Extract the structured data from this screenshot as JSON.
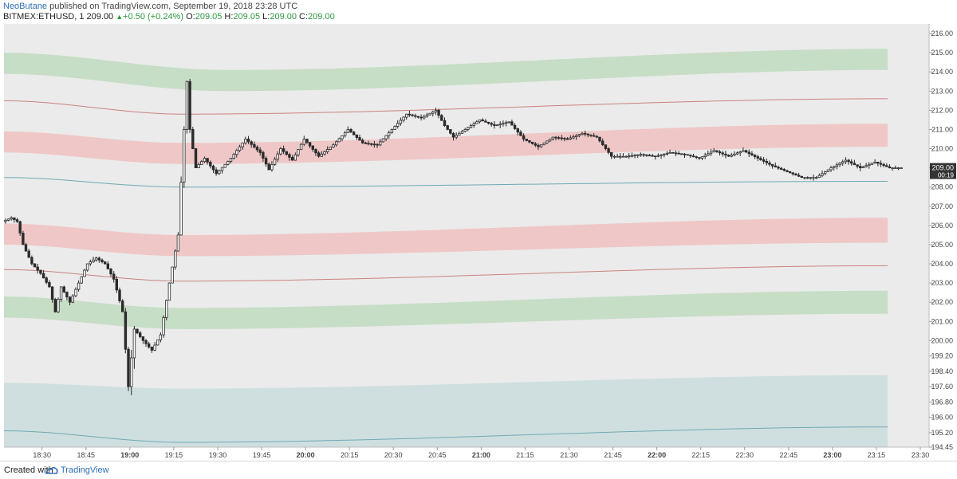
{
  "header": {
    "author": "NeoButane",
    "published_text": "published on TradingView.com, September 19, 2018 23:28 UTC",
    "symbol": "BITMEX:ETHUSD, 1",
    "last": "209.00",
    "change": "+0.50 (+0.24%)",
    "o_label": "O:",
    "o_value": "209.05",
    "h_label": "H:",
    "h_value": "209.05",
    "l_label": "L:",
    "l_value": "209.00",
    "c_label": "C:",
    "c_value": "209.00"
  },
  "footer": {
    "created_with": "Created with",
    "brand": "TradingView"
  },
  "colors": {
    "plot_bg": "#ebebeb",
    "green_band": "#c6ddc6",
    "red_band": "#efc7c7",
    "teal_band": "#cfdfdf",
    "red_line": "#c9837e",
    "teal_line": "#6fa9b4",
    "candle": "#2b2b2b",
    "price_label_bg": "#333333"
  },
  "chart_data": {
    "type": "candlestick",
    "symbol": "BITMEX:ETHUSD",
    "interval": "1",
    "x_range": [
      "18:17",
      "23:33"
    ],
    "y_range": [
      194.45,
      216.5
    ],
    "x_ticks": [
      "18:30",
      "18:45",
      "19:00",
      "19:15",
      "19:30",
      "19:45",
      "20:00",
      "20:15",
      "20:30",
      "20:45",
      "21:00",
      "21:15",
      "21:30",
      "21:45",
      "22:00",
      "22:15",
      "22:30",
      "22:45",
      "23:00",
      "23:15",
      "23:30"
    ],
    "bold_ticks": [
      "19:00",
      "20:00",
      "21:00",
      "22:00",
      "23:00"
    ],
    "y_ticks": [
      "216.00",
      "215.00",
      "214.00",
      "213.00",
      "212.00",
      "211.00",
      "210.00",
      "209.00",
      "208.00",
      "207.00",
      "206.00",
      "205.00",
      "204.00",
      "203.00",
      "202.00",
      "201.00",
      "200.00",
      "199.20",
      "198.40",
      "197.60",
      "196.80",
      "196.00",
      "195.20",
      "194.45"
    ],
    "price_label": "209.00",
    "countdown_label": "00:19",
    "price_path": [
      [
        "18:17",
        206.2
      ],
      [
        "18:20",
        206.4
      ],
      [
        "18:22",
        206.2
      ],
      [
        "18:24",
        205.0
      ],
      [
        "18:27",
        204.0
      ],
      [
        "18:30",
        203.5
      ],
      [
        "18:33",
        202.8
      ],
      [
        "18:35",
        201.5
      ],
      [
        "18:37",
        202.8
      ],
      [
        "18:40",
        202.0
      ],
      [
        "18:43",
        203.0
      ],
      [
        "18:46",
        204.0
      ],
      [
        "18:49",
        204.3
      ],
      [
        "18:52",
        204.0
      ],
      [
        "18:55",
        203.2
      ],
      [
        "18:58",
        201.5
      ],
      [
        "19:00",
        197.6
      ],
      [
        "19:02",
        200.6
      ],
      [
        "19:05",
        200.0
      ],
      [
        "19:08",
        199.5
      ],
      [
        "19:11",
        200.3
      ],
      [
        "19:14",
        203.0
      ],
      [
        "19:17",
        205.5
      ],
      [
        "19:19",
        211.0
      ],
      [
        "19:20",
        213.5
      ],
      [
        "19:21",
        211.0
      ],
      [
        "19:23",
        209.0
      ],
      [
        "19:26",
        209.5
      ],
      [
        "19:30",
        208.7
      ],
      [
        "19:35",
        209.5
      ],
      [
        "19:40",
        210.5
      ],
      [
        "19:45",
        209.8
      ],
      [
        "19:48",
        208.9
      ],
      [
        "19:52",
        210.0
      ],
      [
        "19:56",
        209.4
      ],
      [
        "20:00",
        210.5
      ],
      [
        "20:05",
        209.6
      ],
      [
        "20:10",
        210.2
      ],
      [
        "20:15",
        211.0
      ],
      [
        "20:20",
        210.3
      ],
      [
        "20:25",
        210.2
      ],
      [
        "20:30",
        211.0
      ],
      [
        "20:35",
        211.8
      ],
      [
        "20:40",
        211.6
      ],
      [
        "20:45",
        212.0
      ],
      [
        "20:48",
        211.2
      ],
      [
        "20:51",
        210.6
      ],
      [
        "20:55",
        211.0
      ],
      [
        "21:00",
        211.5
      ],
      [
        "21:05",
        211.2
      ],
      [
        "21:10",
        211.4
      ],
      [
        "21:15",
        210.5
      ],
      [
        "21:20",
        210.1
      ],
      [
        "21:25",
        210.6
      ],
      [
        "21:30",
        210.5
      ],
      [
        "21:35",
        210.8
      ],
      [
        "21:40",
        210.6
      ],
      [
        "21:45",
        209.6
      ],
      [
        "21:50",
        209.6
      ],
      [
        "21:55",
        209.7
      ],
      [
        "22:00",
        209.6
      ],
      [
        "22:05",
        209.8
      ],
      [
        "22:10",
        209.7
      ],
      [
        "22:15",
        209.5
      ],
      [
        "22:20",
        209.9
      ],
      [
        "22:25",
        209.6
      ],
      [
        "22:30",
        209.9
      ],
      [
        "22:35",
        209.5
      ],
      [
        "22:40",
        209.1
      ],
      [
        "22:45",
        208.8
      ],
      [
        "22:50",
        208.5
      ],
      [
        "22:55",
        208.5
      ],
      [
        "23:00",
        209.0
      ],
      [
        "23:05",
        209.4
      ],
      [
        "23:10",
        209.0
      ],
      [
        "23:15",
        209.3
      ],
      [
        "23:20",
        209.0
      ],
      [
        "23:24",
        209.0
      ]
    ],
    "bands": [
      {
        "color": "green",
        "upper": [
          [
            0.0,
            215.0
          ],
          [
            0.25,
            214.1
          ],
          [
            1.0,
            215.2
          ]
        ],
        "lower": [
          [
            0.0,
            213.9
          ],
          [
            0.25,
            213.0
          ],
          [
            1.0,
            214.1
          ]
        ]
      },
      {
        "color": "red",
        "upper": [
          [
            0.0,
            210.9
          ],
          [
            0.2,
            210.3
          ],
          [
            1.0,
            211.3
          ]
        ],
        "lower": [
          [
            0.0,
            209.8
          ],
          [
            0.2,
            209.2
          ],
          [
            1.0,
            210.1
          ]
        ]
      },
      {
        "color": "red",
        "upper": [
          [
            0.0,
            206.1
          ],
          [
            0.2,
            205.5
          ],
          [
            1.0,
            206.4
          ]
        ],
        "lower": [
          [
            0.0,
            205.0
          ],
          [
            0.2,
            204.4
          ],
          [
            1.0,
            205.1
          ]
        ]
      },
      {
        "color": "green",
        "upper": [
          [
            0.0,
            202.3
          ],
          [
            0.2,
            201.7
          ],
          [
            1.0,
            202.6
          ]
        ],
        "lower": [
          [
            0.0,
            201.2
          ],
          [
            0.2,
            200.6
          ],
          [
            1.0,
            201.4
          ]
        ]
      },
      {
        "color": "teal",
        "upper": [
          [
            0.0,
            197.8
          ],
          [
            0.2,
            197.5
          ],
          [
            1.0,
            198.2
          ]
        ],
        "lower": [
          [
            0.0,
            194.45
          ],
          [
            1.0,
            194.45
          ]
        ]
      }
    ],
    "lines": [
      {
        "color": "red",
        "points": [
          [
            0.0,
            212.5
          ],
          [
            0.2,
            211.8
          ],
          [
            1.0,
            212.6
          ]
        ]
      },
      {
        "color": "teal",
        "points": [
          [
            0.0,
            208.5
          ],
          [
            0.2,
            208.0
          ],
          [
            1.0,
            208.3
          ]
        ]
      },
      {
        "color": "red",
        "points": [
          [
            0.0,
            203.7
          ],
          [
            0.2,
            203.1
          ],
          [
            1.0,
            203.9
          ]
        ]
      },
      {
        "color": "teal",
        "points": [
          [
            0.0,
            195.3
          ],
          [
            0.2,
            194.7
          ],
          [
            1.0,
            195.5
          ]
        ]
      }
    ]
  }
}
